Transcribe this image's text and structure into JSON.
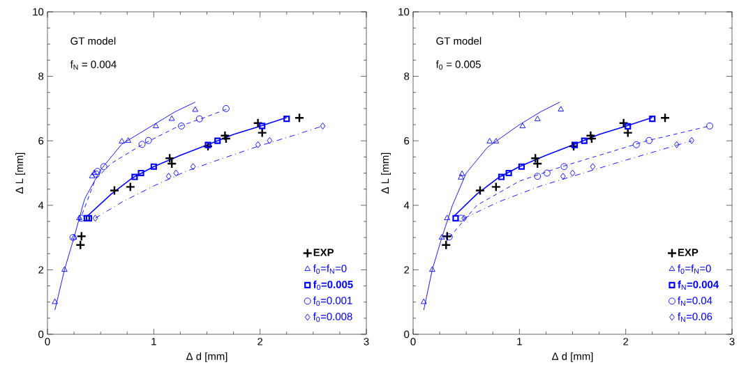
{
  "chart_data": [
    {
      "type": "scatter",
      "xlabel": "Δ d [mm]",
      "ylabel": "Δ L [mm]",
      "xlim": [
        0,
        3
      ],
      "ylim": [
        0,
        10
      ],
      "xticks": [
        0,
        1,
        2,
        3
      ],
      "yticks": [
        0,
        2,
        4,
        6,
        8,
        10
      ],
      "grid": false,
      "legend": "bottom right",
      "annotations": [
        "GT model",
        "f$_{N}$ = 0.004"
      ],
      "series": [
        {
          "name": "**EXP**",
          "color": "#000000",
          "type": "scatter",
          "marker": "cross",
          "x": [
            0.32,
            0.31,
            0.63,
            0.78,
            1.15,
            1.17,
            1.51,
            1.67,
            1.68,
            1.98,
            2.02,
            2.37
          ],
          "values": [
            3.04,
            2.77,
            4.46,
            4.57,
            5.46,
            5.29,
            5.83,
            6.16,
            6.07,
            6.55,
            6.25,
            6.71
          ]
        },
        {
          "name": "f$_{0}$=f$_{N}$=0",
          "color": "#0000ff",
          "type": "scatter",
          "marker": "triangle",
          "x": [
            0.07,
            0.16,
            0.25,
            0.3,
            0.42,
            0.44,
            0.7,
            0.76,
            1.02,
            1.17,
            1.39
          ],
          "values": [
            1.0,
            2.0,
            3.0,
            3.6,
            4.9,
            5.0,
            5.98,
            6.0,
            6.45,
            6.68,
            6.96
          ]
        },
        {
          "name": "**f**$_{0}$**=0.005**",
          "color": "#0000ff",
          "type": "scatter",
          "marker": "square",
          "x": [
            0.37,
            0.39,
            0.82,
            0.88,
            1.0,
            1.51,
            1.6,
            2.02,
            2.25
          ],
          "values": [
            3.6,
            3.6,
            4.88,
            5.0,
            5.2,
            5.87,
            6.0,
            6.46,
            6.68
          ]
        },
        {
          "name": "f$_{0}$=0.001",
          "color": "#0000ff",
          "type": "scatter",
          "marker": "circle",
          "x": [
            0.24,
            0.32,
            0.46,
            0.47,
            0.53,
            0.89,
            0.95,
            1.26,
            1.43,
            1.68
          ],
          "values": [
            3.0,
            3.6,
            4.97,
            5.05,
            5.2,
            5.89,
            6.01,
            6.46,
            6.68,
            7.0
          ]
        },
        {
          "name": "f$_{0}$=0.008",
          "color": "#0000ff",
          "type": "scatter",
          "marker": "diamond",
          "x": [
            0.45,
            1.14,
            1.21,
            1.37,
            1.98,
            2.09,
            2.59
          ],
          "values": [
            3.6,
            4.9,
            5.0,
            5.2,
            5.88,
            6.01,
            6.46
          ]
        },
        {
          "color": "#0000ff",
          "type": "line",
          "marker": "none",
          "line_style": "solid",
          "x": [
            0.07,
            0.16,
            0.25,
            0.35,
            0.5,
            0.7,
            1.0,
            1.2,
            1.39
          ],
          "values": [
            0.75,
            2.0,
            3.0,
            4.2,
            5.1,
            5.9,
            6.5,
            6.9,
            7.2
          ]
        },
        {
          "color": "#0000ff",
          "type": "line",
          "marker": "none",
          "line_style": "solid",
          "x": [
            0.37,
            0.6,
            0.8,
            1.0,
            1.25,
            1.5,
            1.75,
            2.0,
            2.25
          ],
          "values": [
            3.65,
            4.35,
            4.85,
            5.2,
            5.55,
            5.87,
            6.2,
            6.45,
            6.72
          ]
        },
        {
          "color": "#0000ff",
          "type": "line",
          "marker": "none",
          "line_style": "dashed",
          "x": [
            0.3,
            0.45,
            0.6,
            0.9,
            1.2,
            1.5,
            1.7
          ],
          "values": [
            3.5,
            4.8,
            5.3,
            5.9,
            6.4,
            6.75,
            7.0
          ]
        },
        {
          "color": "#0000ff",
          "type": "line",
          "marker": "none",
          "line_style": "dashdot",
          "x": [
            0.45,
            0.7,
            1.0,
            1.3,
            1.6,
            2.0,
            2.3,
            2.59
          ],
          "values": [
            3.6,
            4.1,
            4.6,
            5.05,
            5.4,
            5.85,
            6.15,
            6.46
          ]
        }
      ]
    },
    {
      "type": "scatter",
      "xlabel": "Δ d [mm]",
      "ylabel": "Δ L [mm]",
      "xlim": [
        0,
        3
      ],
      "ylim": [
        0,
        10
      ],
      "xticks": [
        0,
        1,
        2,
        3
      ],
      "yticks": [
        0,
        2,
        4,
        6,
        8,
        10
      ],
      "grid": false,
      "legend": "bottom right",
      "annotations": [
        "GT model",
        "f$_{0}$ = 0.005"
      ],
      "series": [
        {
          "name": "**EXP**",
          "color": "#000000",
          "type": "scatter",
          "marker": "cross",
          "x": [
            0.32,
            0.31,
            0.63,
            0.78,
            1.15,
            1.17,
            1.51,
            1.67,
            1.68,
            1.98,
            2.02,
            2.37
          ],
          "values": [
            3.04,
            2.77,
            4.46,
            4.57,
            5.46,
            5.29,
            5.83,
            6.16,
            6.07,
            6.55,
            6.25,
            6.71
          ]
        },
        {
          "name": "f$_{0}$=f$_{N}$=0",
          "color": "#0000ff",
          "type": "scatter",
          "marker": "triangle",
          "x": [
            0.1,
            0.18,
            0.27,
            0.32,
            0.45,
            0.46,
            0.72,
            0.78,
            1.03,
            1.17,
            1.39
          ],
          "values": [
            1.0,
            2.0,
            3.0,
            3.6,
            4.86,
            4.97,
            5.98,
            5.98,
            6.45,
            6.67,
            6.97
          ]
        },
        {
          "name": "**f**$_{N}$**=0.004**",
          "color": "#0000ff",
          "type": "scatter",
          "marker": "square",
          "x": [
            0.4,
            0.83,
            0.9,
            1.02,
            1.52,
            1.61,
            2.02,
            2.25
          ],
          "values": [
            3.6,
            4.88,
            5.0,
            5.2,
            5.87,
            6.0,
            6.45,
            6.68
          ]
        },
        {
          "name": "f$_{N}$=0.04",
          "color": "#0000ff",
          "type": "scatter",
          "marker": "circle",
          "x": [
            0.34,
            0.45,
            1.17,
            1.26,
            1.42,
            2.1,
            2.22,
            2.79
          ],
          "values": [
            3.02,
            3.6,
            4.9,
            5.0,
            5.2,
            5.88,
            6.01,
            6.46
          ]
        },
        {
          "name": "f$_{N}$=0.06",
          "color": "#0000ff",
          "type": "scatter",
          "marker": "diamond",
          "x": [
            0.48,
            1.41,
            1.5,
            1.69,
            2.48,
            2.62
          ],
          "values": [
            3.6,
            4.9,
            5.0,
            5.2,
            5.88,
            6.01
          ]
        },
        {
          "color": "#0000ff",
          "type": "line",
          "marker": "none",
          "line_style": "solid",
          "x": [
            0.1,
            0.18,
            0.27,
            0.37,
            0.5,
            0.7,
            1.0,
            1.2,
            1.38
          ],
          "values": [
            0.75,
            2.0,
            3.0,
            4.0,
            5.0,
            5.8,
            6.5,
            6.9,
            7.2
          ]
        },
        {
          "color": "#0000ff",
          "type": "line",
          "marker": "none",
          "line_style": "solid",
          "x": [
            0.38,
            0.6,
            0.8,
            1.0,
            1.25,
            1.5,
            1.75,
            2.0,
            2.25
          ],
          "values": [
            3.65,
            4.35,
            4.85,
            5.2,
            5.55,
            5.87,
            6.2,
            6.45,
            6.72
          ]
        },
        {
          "color": "#0000ff",
          "type": "line",
          "marker": "none",
          "line_style": "dashed",
          "x": [
            0.34,
            0.6,
            1.0,
            1.4,
            1.8,
            2.2,
            2.79
          ],
          "values": [
            3.0,
            4.0,
            4.75,
            5.2,
            5.6,
            6.0,
            6.46
          ]
        },
        {
          "color": "#0000ff",
          "type": "line",
          "marker": "none",
          "line_style": "dashdot",
          "x": [
            0.48,
            0.8,
            1.2,
            1.6,
            2.0,
            2.62
          ],
          "values": [
            3.6,
            4.1,
            4.6,
            5.0,
            5.4,
            6.0
          ]
        }
      ]
    }
  ]
}
